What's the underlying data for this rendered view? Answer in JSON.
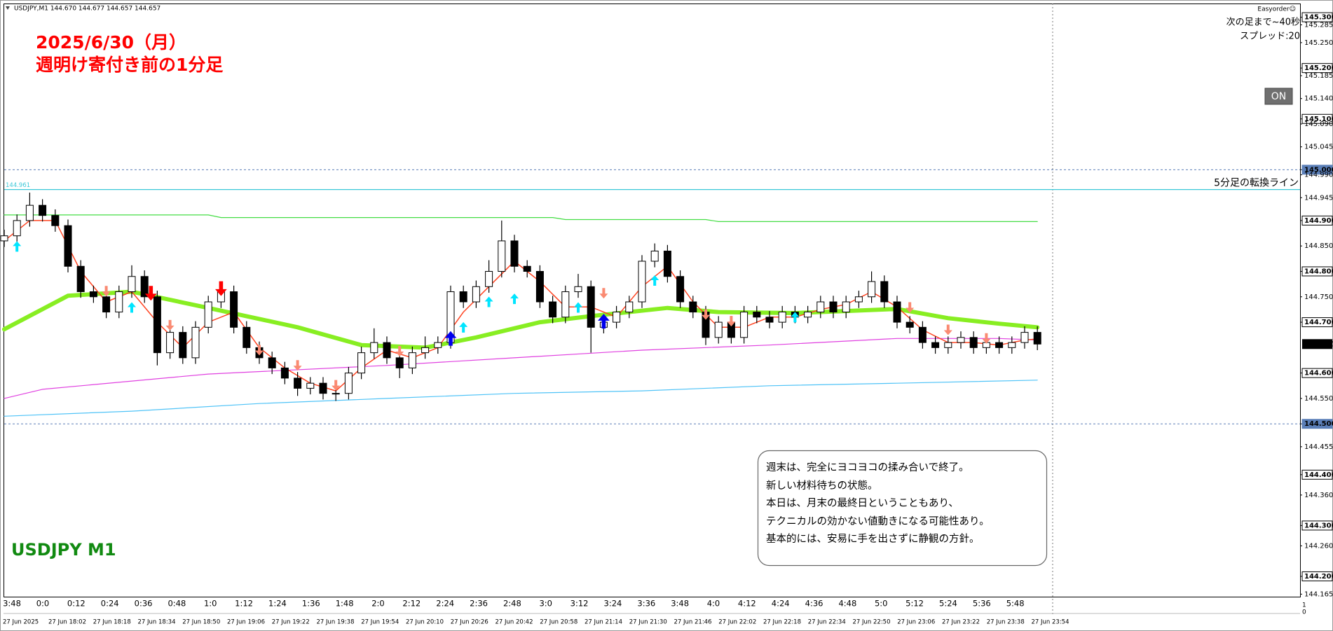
{
  "chart_data": {
    "type": "candlestick",
    "status_line": "USDJPY,M1  144.670 144.677 144.657 144.657",
    "title_lines": [
      "2025/6/30（月）",
      "週明け寄付き前の1分足"
    ],
    "title_color": "#ff0000",
    "symbol_label": "USDJPY M1",
    "symbol_color": "#118a11",
    "panel": {
      "name": "Easyorder☺",
      "countdown": "次の足まで~40秒",
      "spread": "スプレッド:20",
      "button": "ON"
    },
    "corner_marks": [
      "1",
      "0"
    ],
    "note": {
      "lines": [
        "週末は、完全にヨコヨコの揉み合いで終了。",
        "新しい材料待ちの状態。",
        "本日は、月末の最終日ということもあり、",
        "テクニカルの効かない値動きになる可能性あり。",
        "基本的には、安易に手を出さずに静観の方針。"
      ]
    },
    "ylim": [
      144.16,
      145.327
    ],
    "yticks": [
      {
        "value": 145.3,
        "label": "145.300"
      },
      145.285,
      {
        "value": 145.25,
        "label": "145.250"
      },
      {
        "value": 145.2,
        "label": "145.200"
      },
      145.185,
      {
        "value": 145.14,
        "label": "145.140"
      },
      {
        "value": 145.1,
        "label": "145.100"
      },
      {
        "value": 145.09,
        "label": "145.090"
      },
      145.045,
      {
        "value": 145.0,
        "label": "145.000"
      },
      {
        "value": 144.99,
        "label": "144.990"
      },
      144.945,
      {
        "value": 144.9,
        "label": "144.900"
      },
      {
        "value": 144.85,
        "label": "144.850"
      },
      {
        "value": 144.8,
        "label": "144.800"
      },
      {
        "value": 144.75,
        "label": "144.750"
      },
      {
        "value": 144.7,
        "label": "144.700"
      },
      {
        "value": 144.6,
        "label": "144.600"
      },
      {
        "value": 144.55,
        "label": "144.550"
      },
      {
        "value": 144.5,
        "label": "144.500"
      },
      144.455,
      {
        "value": 144.4,
        "label": "144.400"
      },
      {
        "value": 144.36,
        "label": "144.360"
      },
      {
        "value": 144.3,
        "label": "144.300"
      },
      {
        "value": 144.26,
        "label": "144.260"
      },
      {
        "value": 144.2,
        "label": "144.200"
      },
      144.165
    ],
    "current_price": 144.657,
    "levels": [
      145.0,
      144.5
    ],
    "level_color": "#5b7fb8",
    "switch_line": {
      "value": 144.961,
      "text": "5分足の転換ライン",
      "color": "#3cc8d8"
    },
    "time_labels": [
      "3:48",
      "0:0",
      "0:12",
      "0:24",
      "0:36",
      "0:48",
      "1:0",
      "1:12",
      "1:24",
      "1:36",
      "1:48",
      "2:0",
      "2:12",
      "2:24",
      "2:36",
      "2:48",
      "3:0",
      "3:12",
      "3:24",
      "3:36",
      "3:48",
      "4:0",
      "4:12",
      "4:24",
      "4:36",
      "4:48",
      "5:0",
      "5:12",
      "5:24",
      "5:36",
      "5:48"
    ],
    "date_labels": [
      "27 Jun 2025",
      "27 Jun 18:02",
      "27 Jun 18:18",
      "27 Jun 18:34",
      "27 Jun 18:50",
      "27 Jun 19:06",
      "27 Jun 19:22",
      "27 Jun 19:38",
      "27 Jun 19:54",
      "27 Jun 20:10",
      "27 Jun 20:26",
      "27 Jun 20:42",
      "27 Jun 20:58",
      "27 Jun 21:14",
      "27 Jun 21:30",
      "27 Jun 21:46",
      "27 Jun 22:02",
      "27 Jun 22:18",
      "27 Jun 22:34",
      "27 Jun 22:50",
      "27 Jun 23:06",
      "27 Jun 23:22",
      "27 Jun 23:38",
      "27 Jun 23:54"
    ],
    "candles": {
      "up_color": "#ffffff",
      "down_color": "#000000",
      "wick_color": "#000000",
      "open": [
        144.86,
        144.87,
        144.9,
        144.93,
        144.91,
        144.89,
        144.81,
        144.76,
        144.75,
        144.72,
        144.76,
        144.79,
        144.75,
        144.64,
        144.68,
        144.63,
        144.69,
        144.74,
        144.76,
        144.69,
        144.65,
        144.63,
        144.61,
        144.59,
        144.57,
        144.58,
        144.56,
        144.56,
        144.6,
        144.64,
        144.66,
        144.63,
        144.61,
        144.64,
        144.65,
        144.66,
        144.76,
        144.74,
        144.77,
        144.8,
        144.86,
        144.81,
        144.8,
        144.74,
        144.71,
        144.76,
        144.77,
        144.69,
        144.7,
        144.72,
        144.74,
        144.82,
        144.84,
        144.79,
        144.74,
        144.72,
        144.67,
        144.7,
        144.67,
        144.72,
        144.71,
        144.7,
        144.72,
        144.71,
        144.72,
        144.74,
        144.72,
        144.74,
        144.75,
        144.78,
        144.74,
        144.7,
        144.69,
        144.66,
        144.65,
        144.66,
        144.67,
        144.65,
        144.66,
        144.65,
        144.66,
        144.68
      ],
      "high": [
        144.882,
        144.912,
        144.955,
        144.942,
        144.922,
        144.902,
        144.822,
        144.772,
        144.762,
        144.772,
        144.812,
        144.802,
        144.762,
        144.692,
        144.692,
        144.702,
        144.752,
        144.775,
        144.772,
        144.702,
        144.662,
        144.642,
        144.622,
        144.602,
        144.592,
        144.592,
        144.572,
        144.612,
        144.652,
        144.688,
        144.672,
        144.642,
        144.652,
        144.672,
        144.672,
        144.772,
        144.772,
        144.782,
        144.822,
        144.9,
        144.872,
        144.822,
        144.812,
        144.752,
        144.772,
        144.795,
        144.782,
        144.712,
        144.732,
        144.752,
        144.832,
        144.855,
        144.852,
        144.802,
        144.752,
        144.732,
        144.712,
        144.712,
        144.732,
        144.732,
        144.722,
        144.732,
        144.732,
        144.732,
        144.752,
        144.752,
        144.752,
        144.762,
        144.8,
        144.792,
        144.752,
        144.712,
        144.702,
        144.672,
        144.672,
        144.682,
        144.682,
        144.672,
        144.672,
        144.672,
        144.692,
        144.692
      ],
      "low": [
        144.848,
        144.858,
        144.888,
        144.898,
        144.878,
        144.798,
        144.748,
        144.738,
        144.708,
        144.708,
        144.748,
        144.738,
        144.615,
        144.628,
        144.618,
        144.618,
        144.678,
        144.728,
        144.678,
        144.638,
        144.618,
        144.598,
        144.578,
        144.555,
        144.558,
        144.548,
        144.545,
        144.548,
        144.588,
        144.628,
        144.618,
        144.59,
        144.598,
        144.628,
        144.638,
        144.648,
        144.728,
        144.728,
        144.758,
        144.788,
        144.798,
        144.788,
        144.728,
        144.698,
        144.698,
        144.748,
        144.64,
        144.678,
        144.688,
        144.708,
        144.728,
        144.808,
        144.778,
        144.728,
        144.708,
        144.655,
        144.658,
        144.658,
        144.658,
        144.698,
        144.688,
        144.688,
        144.698,
        144.698,
        144.708,
        144.708,
        144.708,
        144.728,
        144.738,
        144.728,
        144.688,
        144.678,
        144.648,
        144.638,
        144.638,
        144.648,
        144.638,
        144.638,
        144.638,
        144.638,
        144.648,
        144.645
      ],
      "close": [
        144.87,
        144.9,
        144.93,
        144.91,
        144.89,
        144.81,
        144.76,
        144.75,
        144.72,
        144.76,
        144.79,
        144.75,
        144.64,
        144.68,
        144.63,
        144.69,
        144.74,
        144.76,
        144.69,
        144.65,
        144.63,
        144.61,
        144.59,
        144.57,
        144.58,
        144.56,
        144.56,
        144.6,
        144.64,
        144.66,
        144.63,
        144.61,
        144.64,
        144.65,
        144.66,
        144.76,
        144.74,
        144.77,
        144.8,
        144.86,
        144.81,
        144.8,
        144.74,
        144.71,
        144.76,
        144.77,
        144.69,
        144.7,
        144.72,
        144.74,
        144.82,
        144.84,
        144.79,
        144.74,
        144.72,
        144.67,
        144.7,
        144.67,
        144.72,
        144.71,
        144.7,
        144.72,
        144.71,
        144.72,
        144.74,
        144.72,
        144.74,
        144.75,
        144.78,
        144.74,
        144.7,
        144.69,
        144.66,
        144.65,
        144.66,
        144.67,
        144.65,
        144.66,
        144.65,
        144.66,
        144.68,
        144.657
      ]
    },
    "lines": [
      {
        "color": "#4fc3f7",
        "width": 1.2,
        "x": [
          0,
          10,
          20,
          30,
          40,
          50,
          60,
          70,
          81
        ],
        "values": [
          144.515,
          144.525,
          144.54,
          144.55,
          144.56,
          144.565,
          144.575,
          144.58,
          144.586
        ]
      },
      {
        "color": "#e040e0",
        "width": 1.2,
        "x": [
          0,
          3,
          16,
          30,
          40,
          50,
          60,
          70,
          78,
          81
        ],
        "values": [
          144.55,
          144.568,
          144.598,
          144.615,
          144.63,
          144.645,
          144.655,
          144.668,
          144.668,
          144.665
        ]
      },
      {
        "color": "#44dd44",
        "width": 1.2,
        "x": [
          0,
          16,
          17,
          43,
          44,
          55,
          56,
          81
        ],
        "values": [
          144.911,
          144.911,
          144.906,
          144.906,
          144.902,
          144.902,
          144.898,
          144.898
        ]
      },
      {
        "color": "#88ee22",
        "width": 6,
        "x": [
          0,
          5,
          10,
          16,
          23,
          28,
          33,
          37,
          42,
          46,
          52,
          56,
          62,
          66,
          70,
          74,
          78,
          81
        ],
        "values": [
          144.686,
          144.752,
          144.76,
          144.728,
          144.69,
          144.655,
          144.65,
          144.67,
          144.7,
          144.712,
          144.728,
          144.72,
          144.718,
          144.722,
          144.726,
          144.708,
          144.697,
          144.69
        ]
      },
      {
        "color": "#ff4422",
        "width": 1.5,
        "x": [
          0,
          2,
          4,
          6,
          8,
          10,
          12,
          14,
          16,
          18,
          20,
          22,
          24,
          26,
          28,
          30,
          32,
          34,
          36,
          38,
          40,
          42,
          44,
          46,
          48,
          50,
          52,
          54,
          56,
          58,
          60,
          62,
          64,
          66,
          68,
          70,
          72,
          74,
          76,
          78,
          80,
          81
        ],
        "values": [
          144.86,
          144.9,
          144.9,
          144.8,
          144.74,
          144.76,
          144.7,
          144.65,
          144.7,
          144.72,
          144.65,
          144.61,
          144.58,
          144.565,
          144.61,
          144.645,
          144.63,
          144.65,
          144.72,
          144.77,
          144.82,
          144.78,
          144.73,
          144.73,
          144.71,
          144.77,
          144.81,
          144.74,
          144.69,
          144.69,
          144.71,
          144.71,
          144.725,
          144.735,
          144.76,
          144.73,
          144.685,
          144.66,
          144.66,
          144.655,
          144.665,
          144.667
        ]
      }
    ],
    "signals": [
      {
        "color": "#00e5ff",
        "direction": "up",
        "size": 1,
        "x": [
          1,
          10,
          36,
          38,
          40,
          45,
          51,
          62
        ],
        "values": [
          144.849,
          144.729,
          144.69,
          144.74,
          144.746,
          144.729,
          144.782,
          144.71
        ]
      },
      {
        "color": "#fa8a72",
        "direction": "down",
        "size": 1,
        "x": [
          8,
          13,
          20,
          23,
          26,
          31,
          47,
          55,
          57,
          71,
          74,
          77
        ],
        "values": [
          144.761,
          144.694,
          144.645,
          144.615,
          144.576,
          144.643,
          144.757,
          144.715,
          144.702,
          144.729,
          144.685,
          144.668
        ]
      },
      {
        "color": "#ff0000",
        "direction": "down",
        "size": 1.4,
        "x": [
          11.5,
          17
        ],
        "values": [
          144.757,
          144.766
        ]
      },
      {
        "color": "#0000ee",
        "direction": "up",
        "size": 1.4,
        "x": [
          35,
          47
        ],
        "values": [
          144.668,
          144.702
        ]
      }
    ]
  }
}
